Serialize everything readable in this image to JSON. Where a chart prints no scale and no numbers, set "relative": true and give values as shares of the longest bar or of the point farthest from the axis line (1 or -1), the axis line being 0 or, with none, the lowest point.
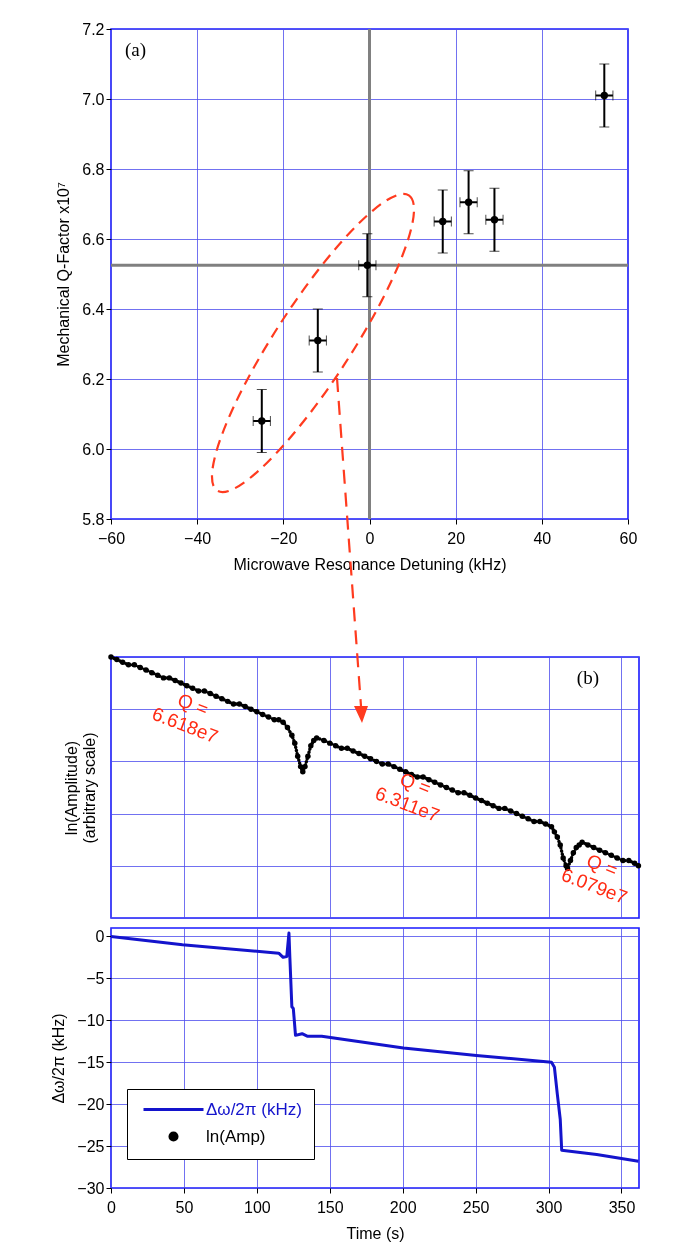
{
  "chart_data": [
    {
      "type": "scatter",
      "xlabel": "Microwave Resonance Detuning (kHz)",
      "ylabel": "Mechanical Q-Factor x10⁷",
      "annotations": [
        "(a)"
      ],
      "x": [
        -25,
        -12,
        -0.5,
        17,
        23,
        29,
        54.5
      ],
      "values": [
        6.08,
        6.31,
        6.525,
        6.65,
        6.705,
        6.655,
        7.01
      ],
      "errors": [
        0.09,
        0.09,
        0.09,
        0.09,
        0.09,
        0.09,
        0.09
      ],
      "xerrors": [
        2,
        2,
        2,
        2,
        2,
        2,
        2
      ],
      "color": "#000000",
      "marker": "circle",
      "xlim": [
        -60,
        60
      ],
      "xticks": [
        -60,
        -40,
        -20,
        0,
        20,
        40,
        60
      ],
      "ylim": [
        5.8,
        7.2
      ],
      "yticks": [
        5.8,
        {
          "value": 6,
          "label": "6.0"
        },
        6.2,
        6.4,
        6.6,
        6.8,
        {
          "value": 7,
          "label": "7.0"
        },
        7.2
      ],
      "ref_lines": [
        {
          "axis": "x",
          "value": 0,
          "color": "#808080"
        },
        {
          "axis": "y",
          "value": 6.525,
          "color": "#808080"
        }
      ],
      "grid": true
    },
    {
      "type": "line",
      "relative": true,
      "line_style": "dotted",
      "ylabel": "ln(Amplitude)\n(arbitrary scale)",
      "annotations": [
        "(b)",
        "Q =\n6.618e7",
        "Q =\n6.311e7",
        "Q =\n6.079e7"
      ],
      "series": [
        {
          "name": "ln(Amp)",
          "color": "#000000",
          "x": [
            0,
            4,
            8,
            12,
            16,
            20,
            24,
            28,
            32,
            36,
            40,
            44,
            48,
            52,
            56,
            60,
            64,
            68,
            72,
            76,
            80,
            84,
            88,
            92,
            96,
            100,
            104,
            108,
            112,
            115,
            118,
            121,
            124,
            126,
            128,
            130,
            131.5,
            133,
            135,
            137,
            139,
            141,
            146,
            150,
            154,
            158,
            162,
            166,
            170,
            174,
            178,
            182,
            186,
            190,
            194,
            198,
            202,
            206,
            210,
            214,
            218,
            222,
            226,
            230,
            234,
            238,
            242,
            246,
            250,
            254,
            258,
            262,
            266,
            270,
            274,
            278,
            282,
            286,
            290,
            294,
            298,
            302,
            304,
            306,
            308,
            310,
            312,
            313,
            315,
            317,
            319,
            321,
            323,
            327,
            331,
            335,
            339,
            343,
            347,
            351,
            355,
            359,
            361.6
          ],
          "values": [
            1,
            0.99,
            0.98,
            0.97,
            0.97,
            0.96,
            0.95,
            0.94,
            0.93,
            0.92,
            0.92,
            0.91,
            0.9,
            0.89,
            0.88,
            0.87,
            0.87,
            0.86,
            0.85,
            0.84,
            0.83,
            0.82,
            0.82,
            0.81,
            0.8,
            0.79,
            0.78,
            0.77,
            0.76,
            0.76,
            0.75,
            0.73,
            0.7,
            0.67,
            0.62,
            0.58,
            0.56,
            0.58,
            0.62,
            0.66,
            0.68,
            0.69,
            0.68,
            0.67,
            0.66,
            0.65,
            0.65,
            0.64,
            0.63,
            0.62,
            0.61,
            0.6,
            0.59,
            0.59,
            0.58,
            0.57,
            0.56,
            0.55,
            0.54,
            0.54,
            0.53,
            0.52,
            0.51,
            0.5,
            0.49,
            0.48,
            0.48,
            0.47,
            0.46,
            0.45,
            0.44,
            0.43,
            0.42,
            0.42,
            0.41,
            0.4,
            0.39,
            0.38,
            0.37,
            0.37,
            0.36,
            0.35,
            0.33,
            0.31,
            0.28,
            0.23,
            0.2,
            0.19,
            0.22,
            0.25,
            0.27,
            0.28,
            0.29,
            0.28,
            0.27,
            0.26,
            0.25,
            0.24,
            0.23,
            0.22,
            0.22,
            0.21,
            0.2
          ]
        }
      ],
      "xlim": [
        0,
        362
      ],
      "xticks": [
        0,
        50,
        100,
        150,
        200,
        250,
        300,
        350
      ],
      "tick_labels": false,
      "grid": true
    },
    {
      "type": "line",
      "xlabel": "Time (s)",
      "ylabel": "Δω/2π (kHz)",
      "series": [
        {
          "name": "Δω/2π (kHz)",
          "color": "#1414cc",
          "x": [
            0,
            49,
            115,
            118,
            120.5,
            122,
            122.6,
            124,
            125,
            126.5,
            131,
            134.5,
            144.5,
            200.5,
            250.5,
            302,
            304,
            306,
            308,
            309,
            333,
            361.6
          ],
          "values": [
            0,
            -1,
            -2,
            -2.5,
            -2.4,
            0.4,
            -2.4,
            -8.4,
            -8.6,
            -11.8,
            -11.6,
            -11.9,
            -11.9,
            -13.3,
            -14.2,
            -15,
            -15.6,
            -18.8,
            -21.8,
            -25.5,
            -26,
            -26.8
          ]
        }
      ],
      "xlim": [
        0,
        362
      ],
      "xticks": [
        0,
        50,
        100,
        150,
        200,
        250,
        300,
        350
      ],
      "ylim": [
        -30,
        1
      ],
      "yticks": [
        0,
        -5,
        -10,
        -15,
        -20,
        -25,
        -30
      ],
      "grid": true,
      "legend": "bottom left"
    }
  ]
}
